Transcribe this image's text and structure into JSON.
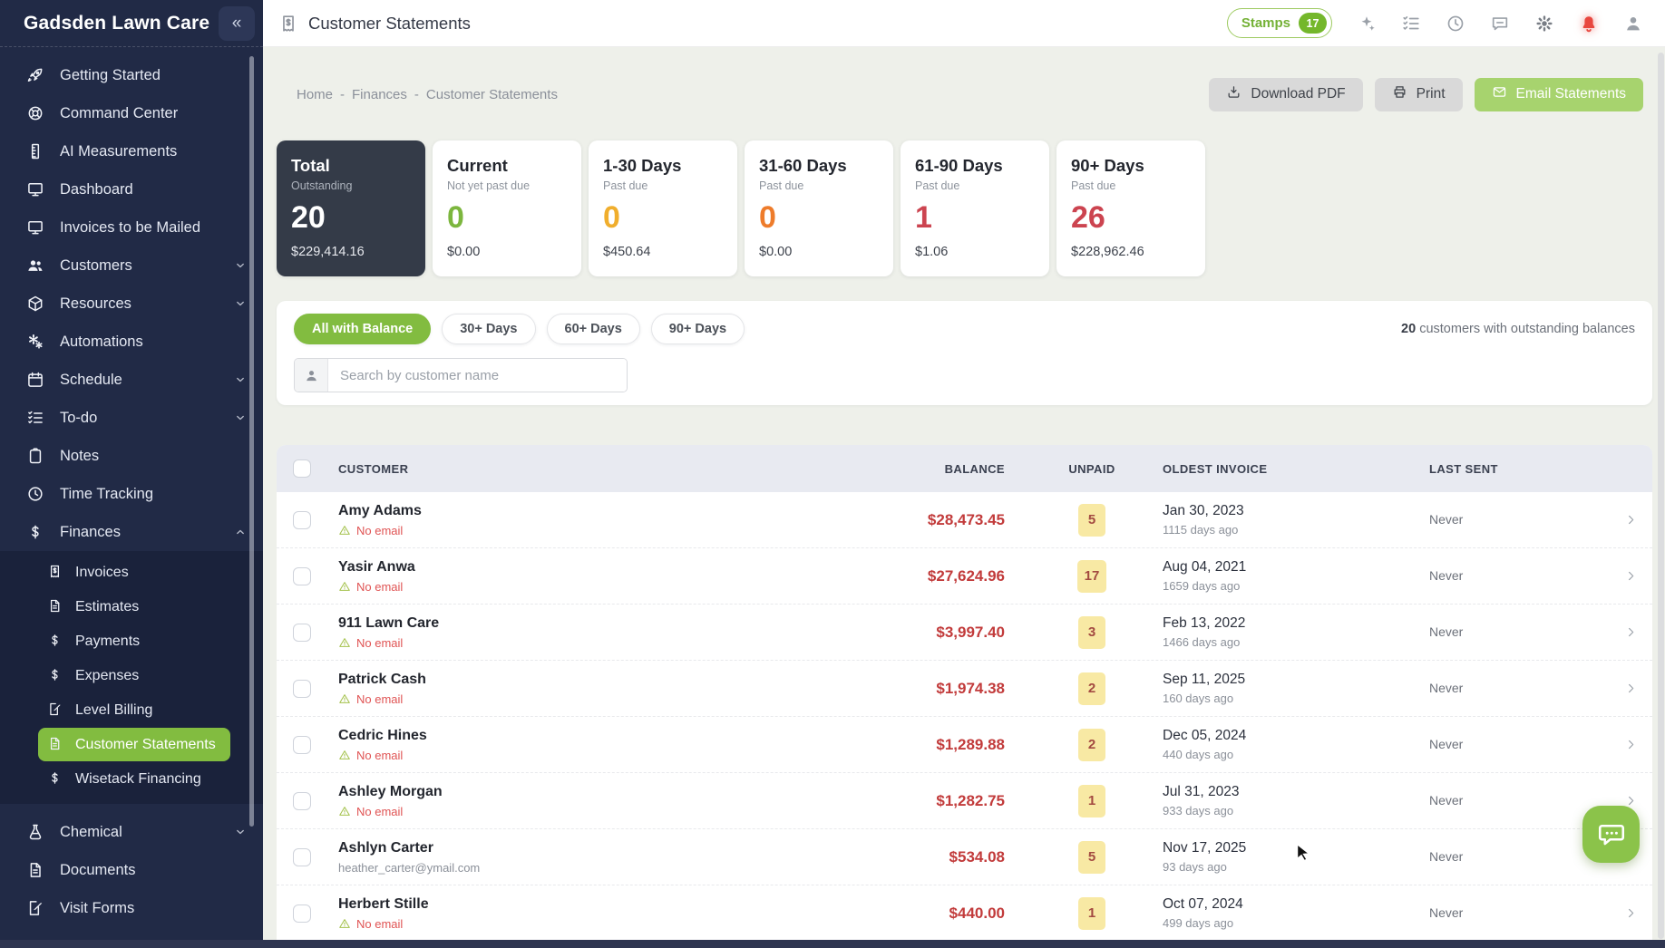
{
  "colors": {
    "accent_green": "#82bc40",
    "sidebar_navy": "#212a46",
    "balance_red": "#c23b3b",
    "badge_yellow": "#f8e9a4"
  },
  "sidebar": {
    "brand": "Gadsden Lawn Care",
    "collapse_glyph": "«",
    "menu": [
      {
        "id": "getting-started",
        "label": "Getting Started",
        "icon": "rocket"
      },
      {
        "id": "command-center",
        "label": "Command Center",
        "icon": "lifebuoy"
      },
      {
        "id": "ai-measurements",
        "label": "AI Measurements",
        "icon": "ruler"
      },
      {
        "id": "dashboard",
        "label": "Dashboard",
        "icon": "monitor"
      },
      {
        "id": "invoices-to-be-mailed",
        "label": "Invoices to be Mailed",
        "icon": "monitor"
      },
      {
        "id": "customers",
        "label": "Customers",
        "icon": "users",
        "chevron": "down"
      },
      {
        "id": "resources",
        "label": "Resources",
        "icon": "box",
        "chevron": "down"
      },
      {
        "id": "automations",
        "label": "Automations",
        "icon": "gears"
      },
      {
        "id": "schedule",
        "label": "Schedule",
        "icon": "calendar",
        "chevron": "down"
      },
      {
        "id": "to-do",
        "label": "To-do",
        "icon": "checklist",
        "chevron": "down"
      },
      {
        "id": "notes",
        "label": "Notes",
        "icon": "clipboard"
      },
      {
        "id": "time-tracking",
        "label": "Time Tracking",
        "icon": "clock"
      },
      {
        "id": "finances",
        "label": "Finances",
        "icon": "dollar",
        "chevron": "up",
        "children": [
          {
            "id": "invoices",
            "label": "Invoices",
            "icon": "invoice"
          },
          {
            "id": "estimates",
            "label": "Estimates",
            "icon": "doc"
          },
          {
            "id": "payments",
            "label": "Payments",
            "icon": "dollar"
          },
          {
            "id": "expenses",
            "label": "Expenses",
            "icon": "dollar"
          },
          {
            "id": "level-billing",
            "label": "Level Billing",
            "icon": "pen-doc"
          },
          {
            "id": "customer-statements",
            "label": "Customer Statements",
            "icon": "doc",
            "active": true
          },
          {
            "id": "wisetack-financing",
            "label": "Wisetack Financing",
            "icon": "dollar"
          }
        ]
      },
      {
        "id": "chemical",
        "label": "Chemical",
        "icon": "flask",
        "chevron": "down"
      },
      {
        "id": "documents",
        "label": "Documents",
        "icon": "doc"
      },
      {
        "id": "visit-forms",
        "label": "Visit Forms",
        "icon": "pen-doc"
      }
    ]
  },
  "topbar": {
    "title": "Customer Statements",
    "stamps_label": "Stamps",
    "stamps_count": "17",
    "icons": [
      {
        "id": "sparkles"
      },
      {
        "id": "checklist"
      },
      {
        "id": "history"
      },
      {
        "id": "feedback"
      },
      {
        "id": "settings"
      },
      {
        "id": "notifications",
        "alert": true
      },
      {
        "id": "account"
      }
    ]
  },
  "breadcrumb": {
    "items": [
      "Home",
      "Finances",
      "Customer Statements"
    ],
    "separator": "-"
  },
  "actions": [
    {
      "id": "download-pdf",
      "label": "Download PDF",
      "icon": "download",
      "style": "gray"
    },
    {
      "id": "print",
      "label": "Print",
      "icon": "printer",
      "style": "gray"
    },
    {
      "id": "email-statements",
      "label": "Email Statements",
      "icon": "envelope",
      "style": "green"
    }
  ],
  "summary_cards": [
    {
      "id": "total",
      "title": "Total",
      "subtitle": "Outstanding",
      "count": "20",
      "amount": "$229,414.16",
      "variant": "dark",
      "count_color": "#ffffff"
    },
    {
      "id": "current",
      "title": "Current",
      "subtitle": "Not yet past due",
      "count": "0",
      "amount": "$0.00",
      "variant": "light",
      "count_color": "#7cb63e"
    },
    {
      "id": "1-30-days",
      "title": "1-30 Days",
      "subtitle": "Past due",
      "count": "0",
      "amount": "$450.64",
      "variant": "light",
      "count_color": "#f0ae2d"
    },
    {
      "id": "31-60-days",
      "title": "31-60 Days",
      "subtitle": "Past due",
      "count": "0",
      "amount": "$0.00",
      "variant": "light",
      "count_color": "#ee7c2b"
    },
    {
      "id": "61-90-days",
      "title": "61-90 Days",
      "subtitle": "Past due",
      "count": "1",
      "amount": "$1.06",
      "variant": "light",
      "count_color": "#cc4450"
    },
    {
      "id": "90-plus-days",
      "title": "90+ Days",
      "subtitle": "Past due",
      "count": "26",
      "amount": "$228,962.46",
      "variant": "light",
      "count_color": "#cc4450"
    }
  ],
  "filters": {
    "pills": [
      {
        "id": "all-with-balance",
        "label": "All with Balance",
        "active": true
      },
      {
        "id": "30-plus-days",
        "label": "30+ Days",
        "active": false
      },
      {
        "id": "60-plus-days",
        "label": "60+ Days",
        "active": false
      },
      {
        "id": "90-plus-days",
        "label": "90+ Days",
        "active": false
      }
    ],
    "summary_count": "20",
    "summary_text": " customers with outstanding balances"
  },
  "search": {
    "placeholder": "Search by customer name"
  },
  "table": {
    "headers": [
      "CUSTOMER",
      "BALANCE",
      "UNPAID",
      "OLDEST INVOICE",
      "LAST SENT"
    ],
    "rows": [
      {
        "name": "Amy Adams",
        "email": "No email",
        "no_email": true,
        "balance": "$28,473.45",
        "unpaid": "5",
        "oldest_date": "Jan 30, 2023",
        "oldest_ago": "1115 days ago",
        "last_sent": "Never"
      },
      {
        "name": "Yasir Anwa",
        "email": "No email",
        "no_email": true,
        "balance": "$27,624.96",
        "unpaid": "17",
        "oldest_date": "Aug 04, 2021",
        "oldest_ago": "1659 days ago",
        "last_sent": "Never"
      },
      {
        "name": "911 Lawn Care",
        "email": "No email",
        "no_email": true,
        "balance": "$3,997.40",
        "unpaid": "3",
        "oldest_date": "Feb 13, 2022",
        "oldest_ago": "1466 days ago",
        "last_sent": "Never"
      },
      {
        "name": "Patrick Cash",
        "email": "No email",
        "no_email": true,
        "balance": "$1,974.38",
        "unpaid": "2",
        "oldest_date": "Sep 11, 2025",
        "oldest_ago": "160 days ago",
        "last_sent": "Never"
      },
      {
        "name": "Cedric Hines",
        "email": "No email",
        "no_email": true,
        "balance": "$1,289.88",
        "unpaid": "2",
        "oldest_date": "Dec 05, 2024",
        "oldest_ago": "440 days ago",
        "last_sent": "Never"
      },
      {
        "name": "Ashley Morgan",
        "email": "No email",
        "no_email": true,
        "balance": "$1,282.75",
        "unpaid": "1",
        "oldest_date": "Jul 31, 2023",
        "oldest_ago": "933 days ago",
        "last_sent": "Never"
      },
      {
        "name": "Ashlyn Carter",
        "email": "heather_carter@ymail.com",
        "no_email": false,
        "balance": "$534.08",
        "unpaid": "5",
        "oldest_date": "Nov 17, 2025",
        "oldest_ago": "93 days ago",
        "last_sent": "Never"
      },
      {
        "name": "Herbert Stille",
        "email": "No email",
        "no_email": true,
        "balance": "$440.00",
        "unpaid": "1",
        "oldest_date": "Oct 07, 2024",
        "oldest_ago": "499 days ago",
        "last_sent": "Never"
      }
    ]
  }
}
